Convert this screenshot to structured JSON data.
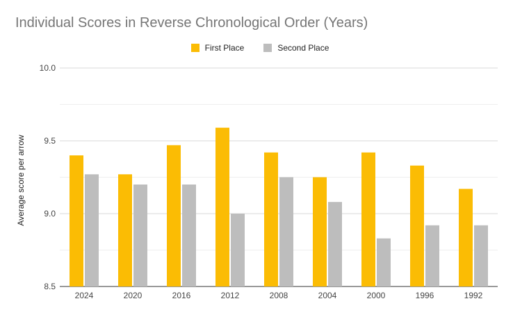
{
  "chart_data": {
    "type": "bar",
    "title": "Individual Scores in Reverse Chronological Order (Years)",
    "xlabel": "",
    "ylabel": "Average score per arrow",
    "categories": [
      "2024",
      "2020",
      "2016",
      "2012",
      "2008",
      "2004",
      "2000",
      "1996",
      "1992"
    ],
    "series": [
      {
        "name": "First Place",
        "color": "#FBBC04",
        "values": [
          9.4,
          9.27,
          9.47,
          9.59,
          9.42,
          9.25,
          9.42,
          9.33,
          9.17
        ]
      },
      {
        "name": "Second Place",
        "color": "#BDBDBD",
        "values": [
          9.27,
          9.2,
          9.2,
          9.0,
          9.25,
          9.08,
          8.83,
          8.92,
          8.92
        ]
      }
    ],
    "ylim": [
      8.5,
      10.0
    ],
    "yticks": [
      "10.0",
      "9.5",
      "9.0",
      "8.5"
    ],
    "grid": true,
    "legend_position": "top-center"
  }
}
